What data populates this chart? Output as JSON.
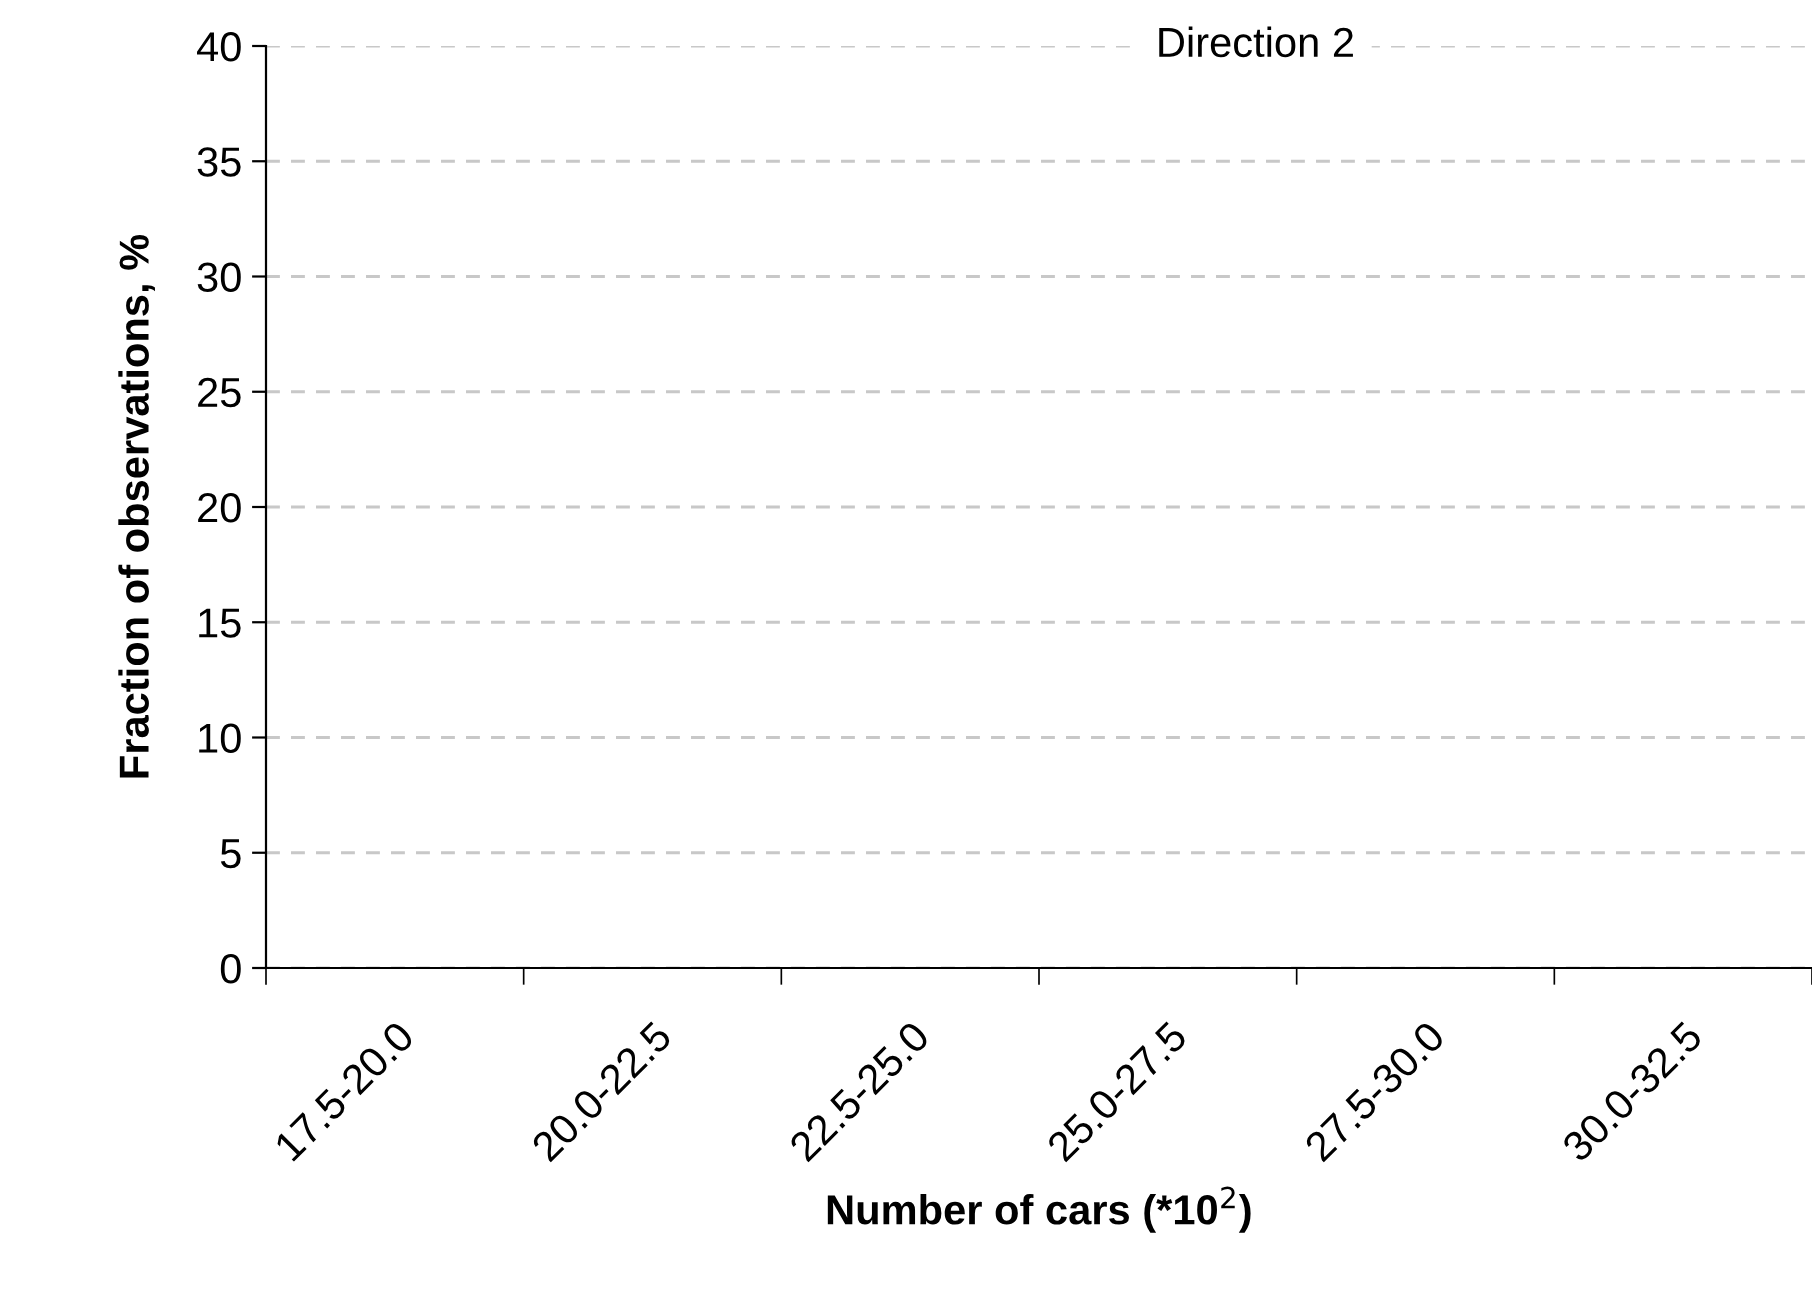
{
  "chart_data": {
    "type": "bar",
    "title": "Direction 2",
    "xlabel": "Number of cars (*10$^{2}$)",
    "ylabel": "Fraction of observations, %",
    "categories": [
      "17.5-20.0",
      "20.0-22.5",
      "22.5-25.0",
      "25.0-27.5",
      "27.5-30.0",
      "30.0-32.5"
    ],
    "values": [
      null,
      null,
      null,
      null,
      null,
      null
    ],
    "ylim": [
      0,
      40
    ],
    "yticks": [
      0,
      5,
      10,
      15,
      20,
      25,
      30,
      35,
      40
    ],
    "grid": "y",
    "legend": false
  }
}
